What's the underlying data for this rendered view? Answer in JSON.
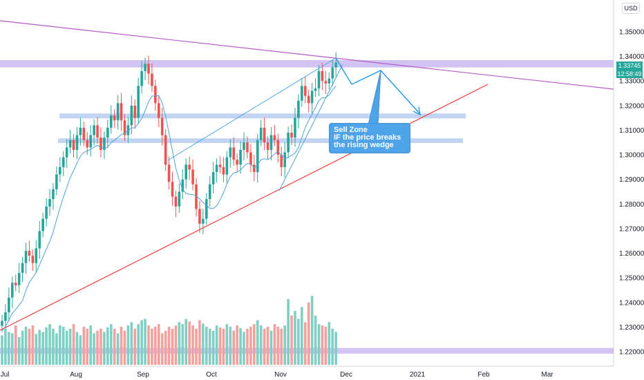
{
  "chart_data": {
    "type": "candlestick",
    "currency_label": "USD",
    "last_price": "1.33745",
    "countdown": "12:58:49",
    "ylim": [
      1.213,
      1.362
    ],
    "y_ticks": [
      "1.35000",
      "1.34000",
      "1.33000",
      "1.32000",
      "1.31000",
      "1.30000",
      "1.29000",
      "1.28000",
      "1.27000",
      "1.26000",
      "1.25000",
      "1.24000",
      "1.23000",
      "1.22000"
    ],
    "x_ticks": [
      "Jul",
      "Aug",
      "Sep",
      "Oct",
      "Nov",
      "Dec",
      "2021",
      "Feb",
      "Mar"
    ],
    "colors": {
      "up": "#26a69a",
      "down": "#ef5350",
      "vol_up": "#7fcfc4",
      "vol_down": "#f4a09c",
      "ma": "#4aa3df",
      "trend_red": "#f23b3b",
      "trend_purple": "#b45bc6",
      "zone": "#b8cdf0",
      "resistance": "#c9b8f0"
    },
    "annotation": {
      "lines": [
        "Sell Zone",
        "IF the price breaks",
        "the rising wedge"
      ]
    },
    "ohlc_close": [
      1.2325,
      1.236,
      1.242,
      1.248,
      1.247,
      1.252,
      1.256,
      1.261,
      1.259,
      1.256,
      1.262,
      1.269,
      1.274,
      1.279,
      1.282,
      1.286,
      1.292,
      1.295,
      1.299,
      1.303,
      1.306,
      1.302,
      1.308,
      1.311,
      1.306,
      1.303,
      1.308,
      1.312,
      1.307,
      1.302,
      1.307,
      1.311,
      1.316,
      1.314,
      1.321,
      1.314,
      1.308,
      1.312,
      1.32,
      1.315,
      1.328,
      1.334,
      1.337,
      1.333,
      1.328,
      1.321,
      1.315,
      1.308,
      1.296,
      1.289,
      1.283,
      1.279,
      1.285,
      1.29,
      1.296,
      1.294,
      1.288,
      1.278,
      1.272,
      1.274,
      1.282,
      1.288,
      1.293,
      1.296,
      1.295,
      1.292,
      1.299,
      1.303,
      1.298,
      1.296,
      1.302,
      1.305,
      1.301,
      1.296,
      1.293,
      1.306,
      1.311,
      1.305,
      1.302,
      1.308,
      1.306,
      1.3,
      1.295,
      1.301,
      1.309,
      1.307,
      1.315,
      1.322,
      1.328,
      1.324,
      1.321,
      1.326,
      1.327,
      1.334,
      1.33,
      1.329,
      1.331,
      1.3355,
      1.3375
    ],
    "volume": [
      0.45,
      0.55,
      0.5,
      0.48,
      0.6,
      0.42,
      0.52,
      0.58,
      0.55,
      0.6,
      0.47,
      0.53,
      0.5,
      0.57,
      0.62,
      0.55,
      0.48,
      0.6,
      0.58,
      0.52,
      0.55,
      0.62,
      0.5,
      0.45,
      0.58,
      0.55,
      0.6,
      0.48,
      0.52,
      0.55,
      0.5,
      0.57,
      0.62,
      0.55,
      0.48,
      0.58,
      0.52,
      0.6,
      0.65,
      0.55,
      0.62,
      0.68,
      0.7,
      0.6,
      0.55,
      0.58,
      0.62,
      0.48,
      0.52,
      0.58,
      0.55,
      0.6,
      0.65,
      0.62,
      0.7,
      0.66,
      0.6,
      0.55,
      0.68,
      0.63,
      0.58,
      0.55,
      0.52,
      0.6,
      0.57,
      0.55,
      0.62,
      0.58,
      0.52,
      0.6,
      0.56,
      0.5,
      0.55,
      0.58,
      0.62,
      0.68,
      0.6,
      0.55,
      0.58,
      0.52,
      0.62,
      0.58,
      0.55,
      0.6,
      1.0,
      0.75,
      0.82,
      0.7,
      0.88,
      0.65,
      0.95,
      1.05,
      0.75,
      0.62,
      0.6,
      0.58,
      0.65,
      0.55,
      0.5
    ]
  }
}
